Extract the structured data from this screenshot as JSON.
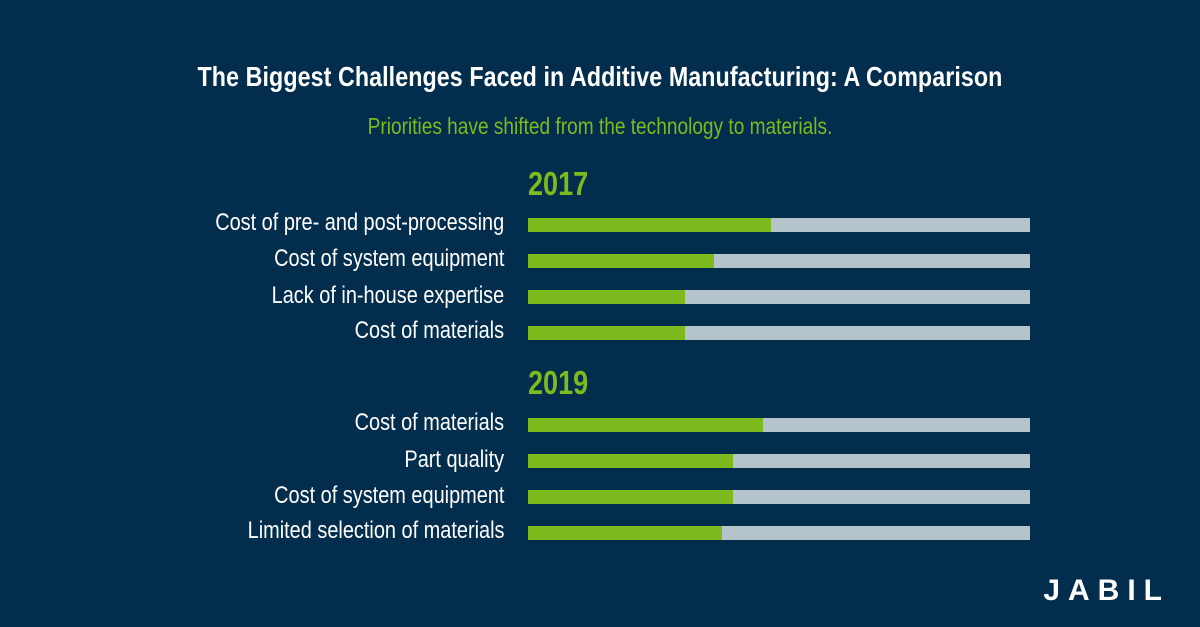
{
  "chart_data": {
    "type": "bar",
    "title": "The Biggest Challenges Faced in Additive Manufacturing: A Comparison",
    "subtitle": "Priorities have shifted from the technology to materials.",
    "xlim": [
      0,
      100
    ],
    "groups": [
      {
        "label": "2017",
        "categories": [
          "Cost of pre- and post-processing",
          "Cost of system equipment",
          "Lack of in-house expertise",
          "Cost of materials"
        ],
        "values": [
          48.4,
          37,
          31.3,
          31.3
        ]
      },
      {
        "label": "2019",
        "categories": [
          "Cost of materials",
          "Part quality",
          "Cost of system equipment",
          "Limited selection of materials"
        ],
        "values": [
          46.8,
          40.9,
          40.9,
          38.6
        ]
      }
    ],
    "colors": {
      "fill": "#7dba1e",
      "track": "#b5c3cb",
      "background": "#022d4d"
    }
  },
  "brand": {
    "logo_text": "JABIL"
  }
}
